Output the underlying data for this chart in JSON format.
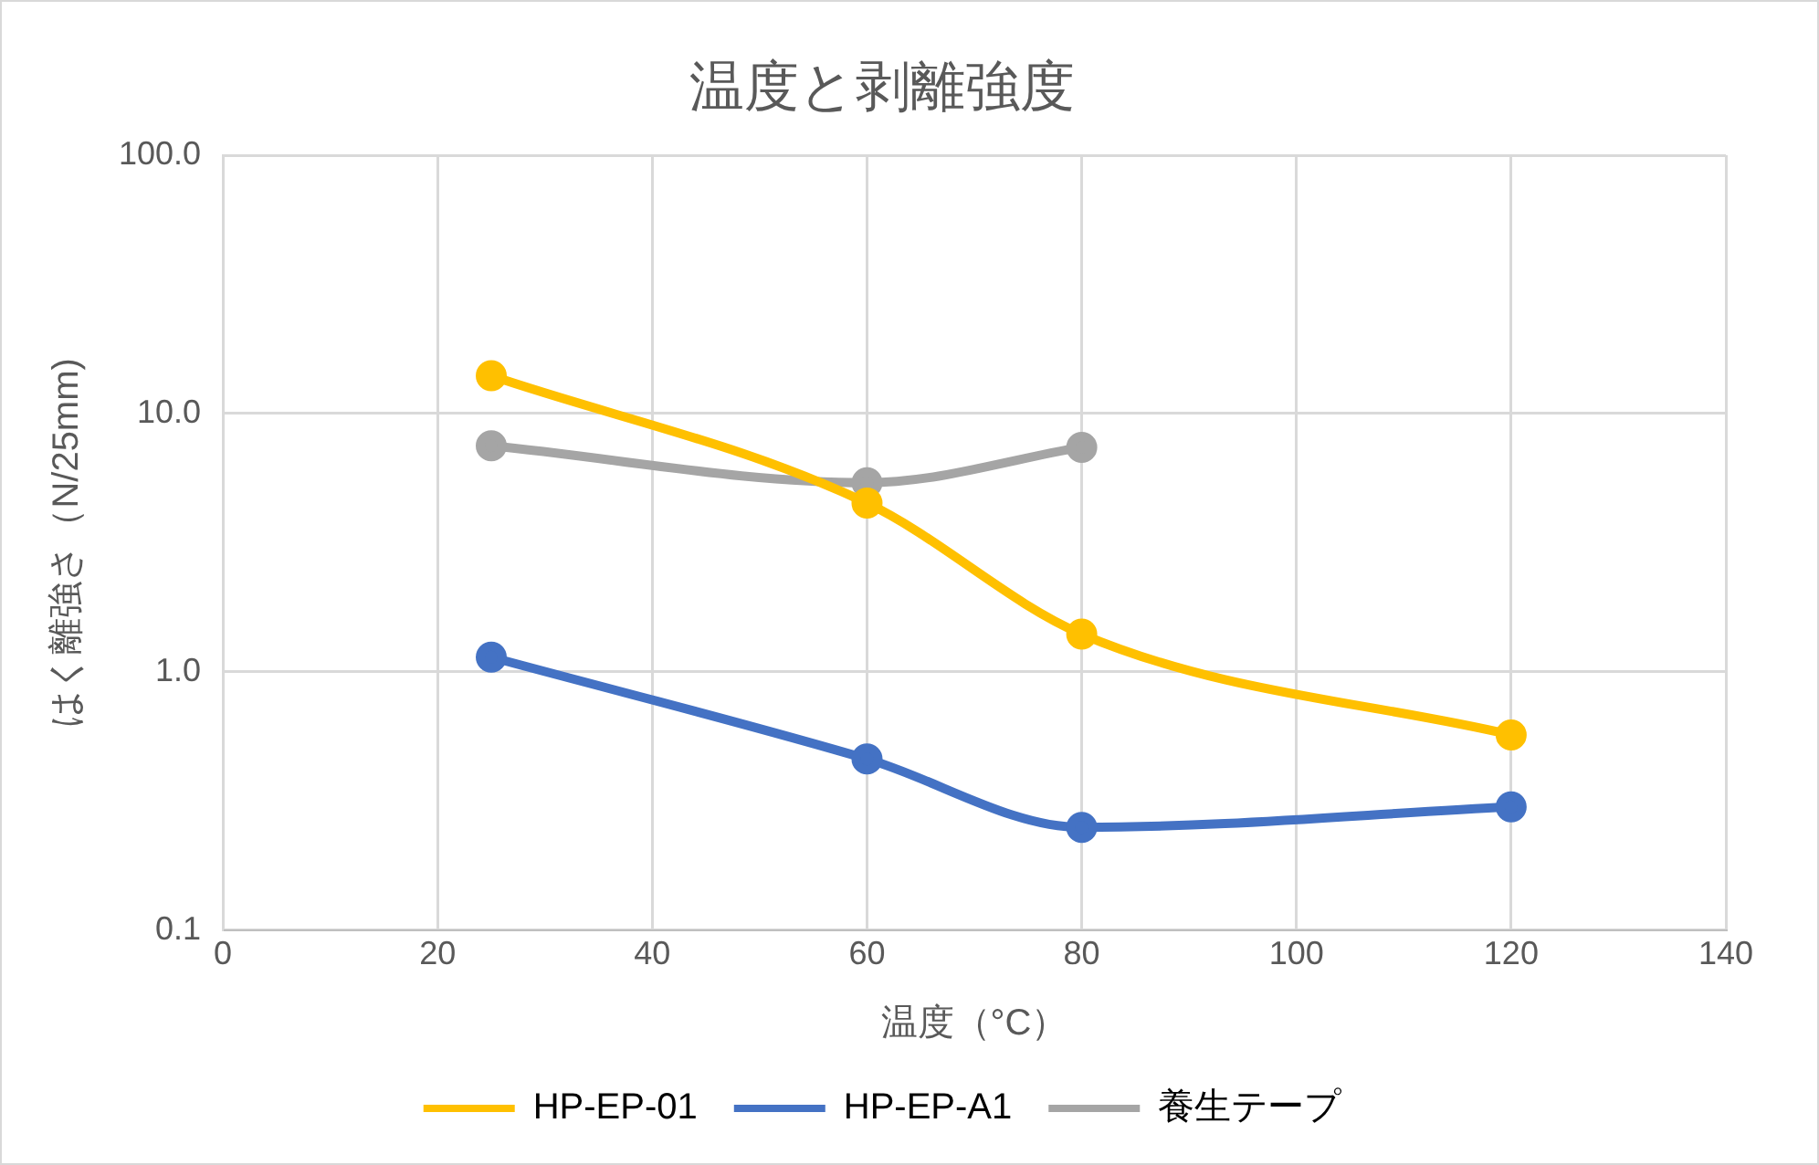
{
  "chart_data": {
    "type": "line",
    "title": "温度と剥離強度",
    "xlabel": "温度（°C）",
    "ylabel": "はく離強さ（N/25mm)",
    "log": "y",
    "grid": true,
    "legend": "bottom",
    "marker": "circle",
    "line_style": "solid",
    "xlim": [
      0,
      140
    ],
    "xticks": [
      0,
      20,
      40,
      60,
      80,
      100,
      120,
      140
    ],
    "ylim": [
      0.1,
      100
    ],
    "yticks": [
      {
        "value": 0.1,
        "label": "0.1"
      },
      {
        "value": 1,
        "label": "1.0"
      },
      {
        "value": 10,
        "label": "10.0"
      },
      {
        "value": 100,
        "label": "100.0"
      }
    ],
    "series": [
      {
        "name": "HP-EP-01",
        "color": "#ffc000",
        "x": [
          25,
          60,
          80,
          120
        ],
        "values": [
          14,
          4.5,
          1.4,
          0.57
        ]
      },
      {
        "name": "HP-EP-A1",
        "color": "#4472c4",
        "x": [
          25,
          60,
          80,
          120
        ],
        "values": [
          1.14,
          0.46,
          0.25,
          0.3
        ]
      },
      {
        "name": "養生テープ",
        "color": "#a5a5a5",
        "x": [
          25,
          60,
          80
        ],
        "values": [
          7.5,
          5.4,
          7.4
        ]
      }
    ]
  }
}
